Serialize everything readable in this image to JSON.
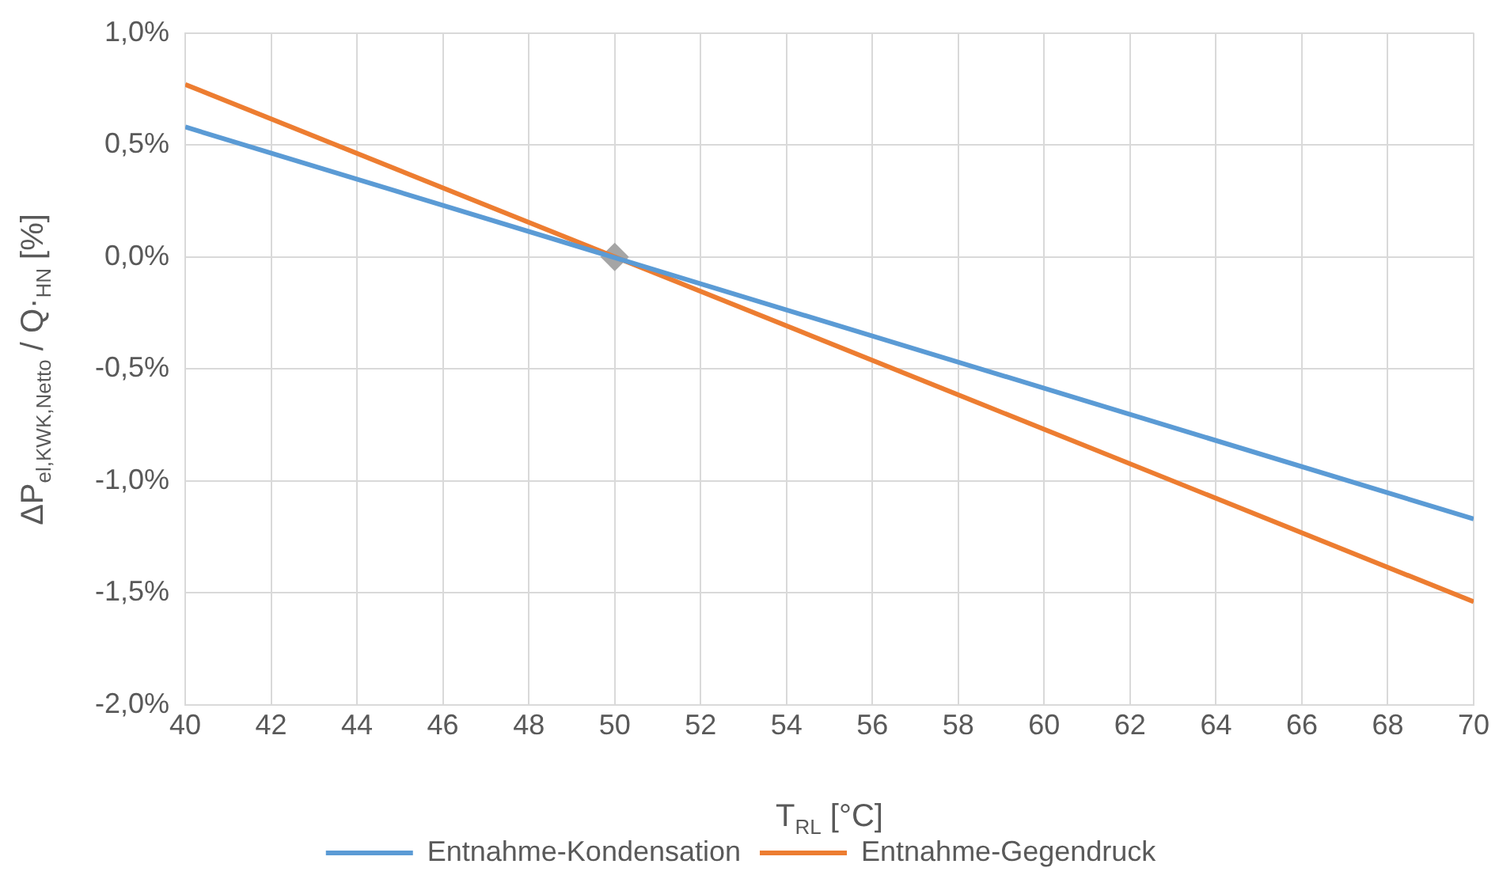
{
  "chart_data": {
    "type": "line",
    "xlabel": "T$_{RL}$ [°C]",
    "ylabel": "ΔP$_{el,KWK,Netto}$ / Q·$_{HN}$ [%]",
    "xlim": [
      40,
      70
    ],
    "xticks": [
      40,
      42,
      44,
      46,
      48,
      50,
      52,
      54,
      56,
      58,
      60,
      62,
      64,
      66,
      68,
      70
    ],
    "ylim": [
      -2,
      1
    ],
    "yticks": [
      {
        "value": -2,
        "label": "-2,0%"
      },
      {
        "value": -1.5,
        "label": "-1,5%"
      },
      {
        "value": -1,
        "label": "-1,0%"
      },
      {
        "value": -0.5,
        "label": "-0,5%"
      },
      {
        "value": 0,
        "label": "0,0%"
      },
      {
        "value": 0.5,
        "label": "0,5%"
      },
      {
        "value": 1,
        "label": "1,0%"
      }
    ],
    "grid": true,
    "legend": "bottom",
    "marker": "none",
    "line_style": "solid",
    "series": [
      {
        "name": "Entnahme-Kondensation",
        "color": "#5b9bd5",
        "x": [
          40,
          70
        ],
        "values": [
          0.58,
          -1.17
        ]
      },
      {
        "name": "Entnahme-Gegendruck",
        "color": "#ed7d31",
        "x": [
          40,
          70
        ],
        "values": [
          0.77,
          -1.54
        ]
      },
      {
        "type": "scatter",
        "marker": "diamond",
        "color": "#a5a5a5",
        "x": [
          50
        ],
        "values": [
          0
        ]
      }
    ]
  }
}
